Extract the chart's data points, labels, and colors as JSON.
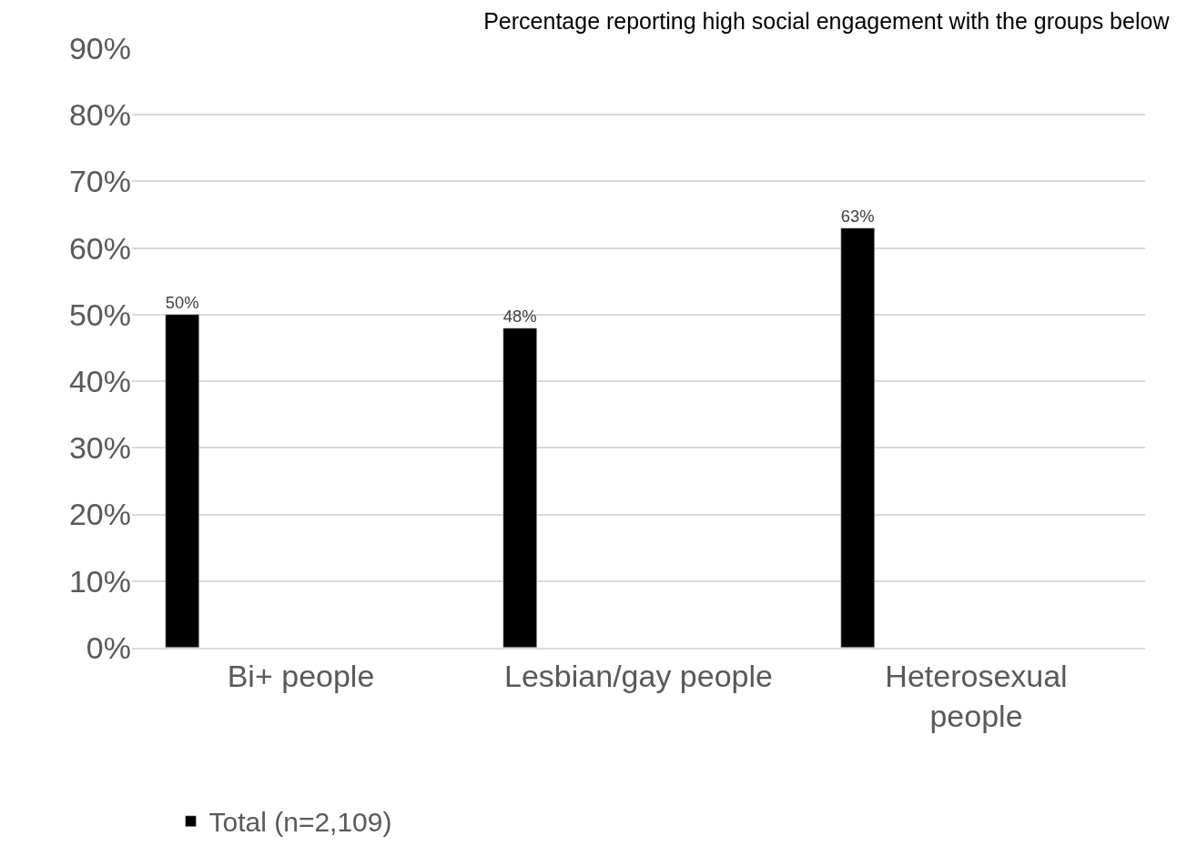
{
  "chart_data": {
    "type": "bar",
    "title": "Percentage reporting high social engagement with the groups below",
    "categories": [
      "Bi+ people",
      "Lesbian/gay people",
      "Heterosexual people"
    ],
    "series": [
      {
        "name": "Total (n=2,109)",
        "color": "#000000",
        "values": [
          50,
          48,
          63
        ],
        "value_labels": [
          "50%",
          "48%",
          "63%"
        ]
      }
    ],
    "ylim": [
      0,
      90
    ],
    "yticks": [
      {
        "value": 0,
        "label": "0%"
      },
      {
        "value": 10,
        "label": "10%"
      },
      {
        "value": 20,
        "label": "20%"
      },
      {
        "value": 30,
        "label": "30%"
      },
      {
        "value": 40,
        "label": "40%"
      },
      {
        "value": 50,
        "label": "50%"
      },
      {
        "value": 60,
        "label": "60%"
      },
      {
        "value": 70,
        "label": "70%"
      },
      {
        "value": 80,
        "label": "80%"
      },
      {
        "value": 90,
        "label": "90%"
      }
    ],
    "grid": "y",
    "legend": "bottom left"
  }
}
